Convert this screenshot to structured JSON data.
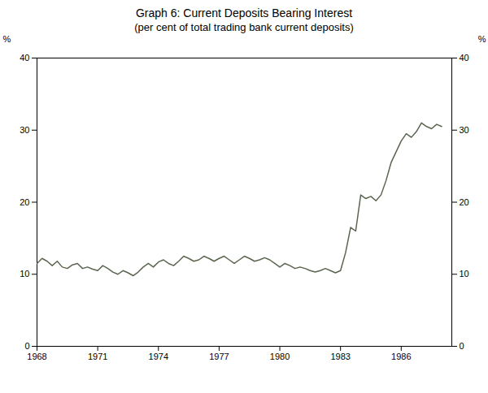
{
  "chart_data": {
    "type": "line",
    "title": "Graph 6: Current Deposits Bearing Interest",
    "subtitle": "(per cent of total trading bank current deposits)",
    "ylabel": "%",
    "y2label": "%",
    "color": "#5a6650",
    "xlim": [
      1968,
      1988.5
    ],
    "xticks": [
      1968,
      1971,
      1974,
      1977,
      1980,
      1983,
      1986
    ],
    "ylim": [
      0,
      40
    ],
    "yticks": [
      0,
      10,
      20,
      30,
      40
    ],
    "y2lim": [
      0,
      40
    ],
    "y2ticks": [
      0,
      10,
      20,
      30,
      40
    ],
    "x": [
      1968,
      1968.25,
      1968.5,
      1968.75,
      1969,
      1969.25,
      1969.5,
      1969.75,
      1970,
      1970.25,
      1970.5,
      1970.75,
      1971,
      1971.25,
      1971.5,
      1971.75,
      1972,
      1972.25,
      1972.5,
      1972.75,
      1973,
      1973.25,
      1973.5,
      1973.75,
      1974,
      1974.25,
      1974.5,
      1974.75,
      1975,
      1975.25,
      1975.5,
      1975.75,
      1976,
      1976.25,
      1976.5,
      1976.75,
      1977,
      1977.25,
      1977.5,
      1977.75,
      1978,
      1978.25,
      1978.5,
      1978.75,
      1979,
      1979.25,
      1979.5,
      1979.75,
      1980,
      1980.25,
      1980.5,
      1980.75,
      1981,
      1981.25,
      1981.5,
      1981.75,
      1982,
      1982.25,
      1982.5,
      1982.75,
      1983,
      1983.25,
      1983.5,
      1983.75,
      1984,
      1984.25,
      1984.5,
      1984.75,
      1985,
      1985.25,
      1985.5,
      1985.75,
      1986,
      1986.25,
      1986.5,
      1986.75,
      1987,
      1987.25,
      1987.5,
      1987.75,
      1988
    ],
    "values": [
      11.5,
      12.2,
      11.8,
      11.2,
      11.8,
      11.0,
      10.8,
      11.3,
      11.5,
      10.8,
      11.0,
      10.7,
      10.5,
      11.2,
      10.8,
      10.3,
      10.0,
      10.5,
      10.2,
      9.8,
      10.3,
      11.0,
      11.5,
      11.0,
      11.7,
      12.0,
      11.5,
      11.2,
      11.8,
      12.5,
      12.2,
      11.8,
      12.0,
      12.5,
      12.2,
      11.8,
      12.2,
      12.5,
      12.0,
      11.5,
      12.0,
      12.5,
      12.2,
      11.8,
      12.0,
      12.3,
      12.0,
      11.5,
      11.0,
      11.5,
      11.2,
      10.8,
      11.0,
      10.8,
      10.5,
      10.3,
      10.5,
      10.8,
      10.5,
      10.2,
      10.5,
      13.0,
      16.5,
      16.0,
      21.0,
      20.5,
      20.8,
      20.2,
      21.0,
      23.0,
      25.5,
      27.0,
      28.5,
      29.5,
      29.0,
      29.8,
      31.0,
      30.5,
      30.2,
      30.8,
      30.5
    ]
  }
}
